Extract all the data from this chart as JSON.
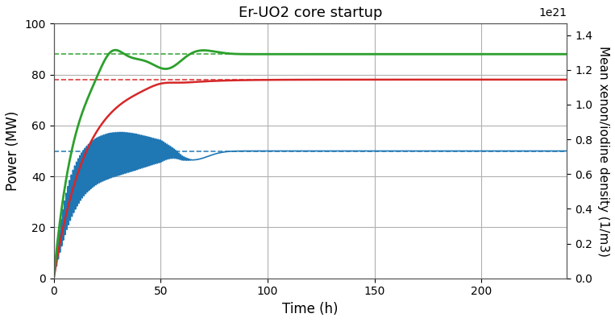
{
  "title": "Er-UO2 core startup",
  "xlabel": "Time (h)",
  "ylabel_left": "Power (MW)",
  "ylabel_right": "Mean xenon/iodine density (1/m3)",
  "right_axis_scale": "1e21",
  "xlim": [
    0,
    240
  ],
  "ylim_left": [
    0,
    100
  ],
  "ylim_right": [
    0.0,
    1.4667
  ],
  "x_ticks": [
    0,
    50,
    100,
    150,
    200
  ],
  "y_ticks_left": [
    0,
    20,
    40,
    60,
    80,
    100
  ],
  "y_ticks_right": [
    0.0,
    0.2,
    0.4,
    0.6,
    0.8,
    1.0,
    1.2,
    1.4
  ],
  "grid_color": "#b0b0b0",
  "bg_color": "#ffffff",
  "colors": {
    "blue": "#1f77b4",
    "red": "#d62728",
    "green": "#2ca02c"
  },
  "dashed_levels": {
    "blue": 50.0,
    "red": 78.0,
    "green": 88.0
  }
}
